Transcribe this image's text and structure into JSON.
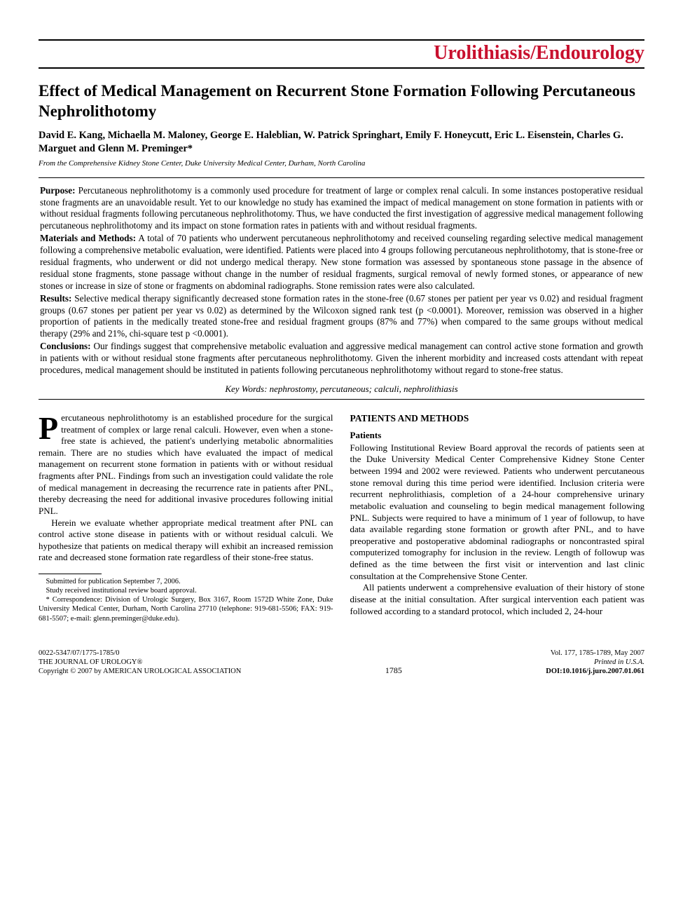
{
  "journal_section": "Urolithiasis/Endourology",
  "section_color": "#c8102e",
  "title": "Effect of Medical Management on Recurrent Stone Formation Following Percutaneous Nephrolithotomy",
  "authors": "David E. Kang, Michaella M. Maloney, George E. Haleblian, W. Patrick Springhart, Emily F. Honeycutt, Eric L. Eisenstein, Charles G. Marguet and Glenn M. Preminger*",
  "affiliation": "From the Comprehensive Kidney Stone Center, Duke University Medical Center, Durham, North Carolina",
  "abstract": {
    "purpose_label": "Purpose:",
    "purpose": " Percutaneous nephrolithotomy is a commonly used procedure for treatment of large or complex renal calculi. In some instances postoperative residual stone fragments are an unavoidable result. Yet to our knowledge no study has examined the impact of medical management on stone formation in patients with or without residual fragments following percutaneous nephrolithotomy. Thus, we have conducted the first investigation of aggressive medical management following percutaneous nephrolithotomy and its impact on stone formation rates in patients with and without residual fragments.",
    "methods_label": "Materials and Methods:",
    "methods": " A total of 70 patients who underwent percutaneous nephrolithotomy and received counseling regarding selective medical management following a comprehensive metabolic evaluation, were identified. Patients were placed into 4 groups following percutaneous nephrolithotomy, that is stone-free or residual fragments, who underwent or did not undergo medical therapy. New stone formation was assessed by spontaneous stone passage in the absence of residual stone fragments, stone passage without change in the number of residual fragments, surgical removal of newly formed stones, or appearance of new stones or increase in size of stone or fragments on abdominal radiographs. Stone remission rates were also calculated.",
    "results_label": "Results:",
    "results": " Selective medical therapy significantly decreased stone formation rates in the stone-free (0.67 stones per patient per year vs 0.02) and residual fragment groups (0.67 stones per patient per year vs 0.02) as determined by the Wilcoxon signed rank test (p <0.0001). Moreover, remission was observed in a higher proportion of patients in the medically treated stone-free and residual fragment groups (87% and 77%) when compared to the same groups without medical therapy (29% and 21%, chi-square test p <0.0001).",
    "conclusions_label": "Conclusions:",
    "conclusions": " Our findings suggest that comprehensive metabolic evaluation and aggressive medical management can control active stone formation and growth in patients with or without residual stone fragments after percutaneous nephrolithotomy. Given the inherent morbidity and increased costs attendant with repeat procedures, medical management should be instituted in patients following percutaneous nephrolithotomy without regard to stone-free status."
  },
  "keywords": "Key Words: nephrostomy, percutaneous; calculi, nephrolithiasis",
  "body": {
    "intro_dropcap": "P",
    "intro_p1": "ercutaneous nephrolithotomy is an established procedure for the surgical treatment of complex or large renal calculi. However, even when a stone-free state is achieved, the patient's underlying metabolic abnormalities remain. There are no studies which have evaluated the impact of medical management on recurrent stone formation in patients with or without residual fragments after PNL. Findings from such an investigation could validate the role of medical management in decreasing the recurrence rate in patients after PNL, thereby decreasing the need for additional invasive procedures following initial PNL.",
    "intro_p2": "Herein we evaluate whether appropriate medical treatment after PNL can control active stone disease in patients with or without residual calculi. We hypothesize that patients on medical therapy will exhibit an increased remission rate and decreased stone formation rate regardless of their stone-free status.",
    "methods_heading": "PATIENTS AND METHODS",
    "patients_heading": "Patients",
    "patients_p1": "Following Institutional Review Board approval the records of patients seen at the Duke University Medical Center Comprehensive Kidney Stone Center between 1994 and 2002 were reviewed. Patients who underwent percutaneous stone removal during this time period were identified. Inclusion criteria were recurrent nephrolithiasis, completion of a 24-hour comprehensive urinary metabolic evaluation and counseling to begin medical management following PNL. Subjects were required to have a minimum of 1 year of followup, to have data available regarding stone formation or growth after PNL, and to have preoperative and postoperative abdominal radiographs or noncontrasted spiral computerized tomography for inclusion in the review. Length of followup was defined as the time between the first visit or intervention and last clinic consultation at the Comprehensive Stone Center.",
    "patients_p2": "All patients underwent a comprehensive evaluation of their history of stone disease at the initial consultation. After surgical intervention each patient was followed according to a standard protocol, which included 2, 24-hour"
  },
  "footnotes": {
    "f1": "Submitted for publication September 7, 2006.",
    "f2": "Study received institutional review board approval.",
    "f3": "* Correspondence: Division of Urologic Surgery, Box 3167, Room 1572D White Zone, Duke University Medical Center, Durham, North Carolina 27710 (telephone: 919-681-5506; FAX: 919-681-5507; e-mail: glenn.preminger@duke.edu)."
  },
  "footer": {
    "issn": "0022-5347/07/1775-1785/0",
    "journal": "THE JOURNAL OF UROLOGY",
    "reg": "®",
    "copyright": "Copyright © 2007 by AMERICAN UROLOGICAL ASSOCIATION",
    "page": "1785",
    "volume": "Vol. 177, 1785-1789, May 2007",
    "printed": "Printed in U.S.A.",
    "doi": "DOI:10.1016/j.juro.2007.01.061"
  }
}
